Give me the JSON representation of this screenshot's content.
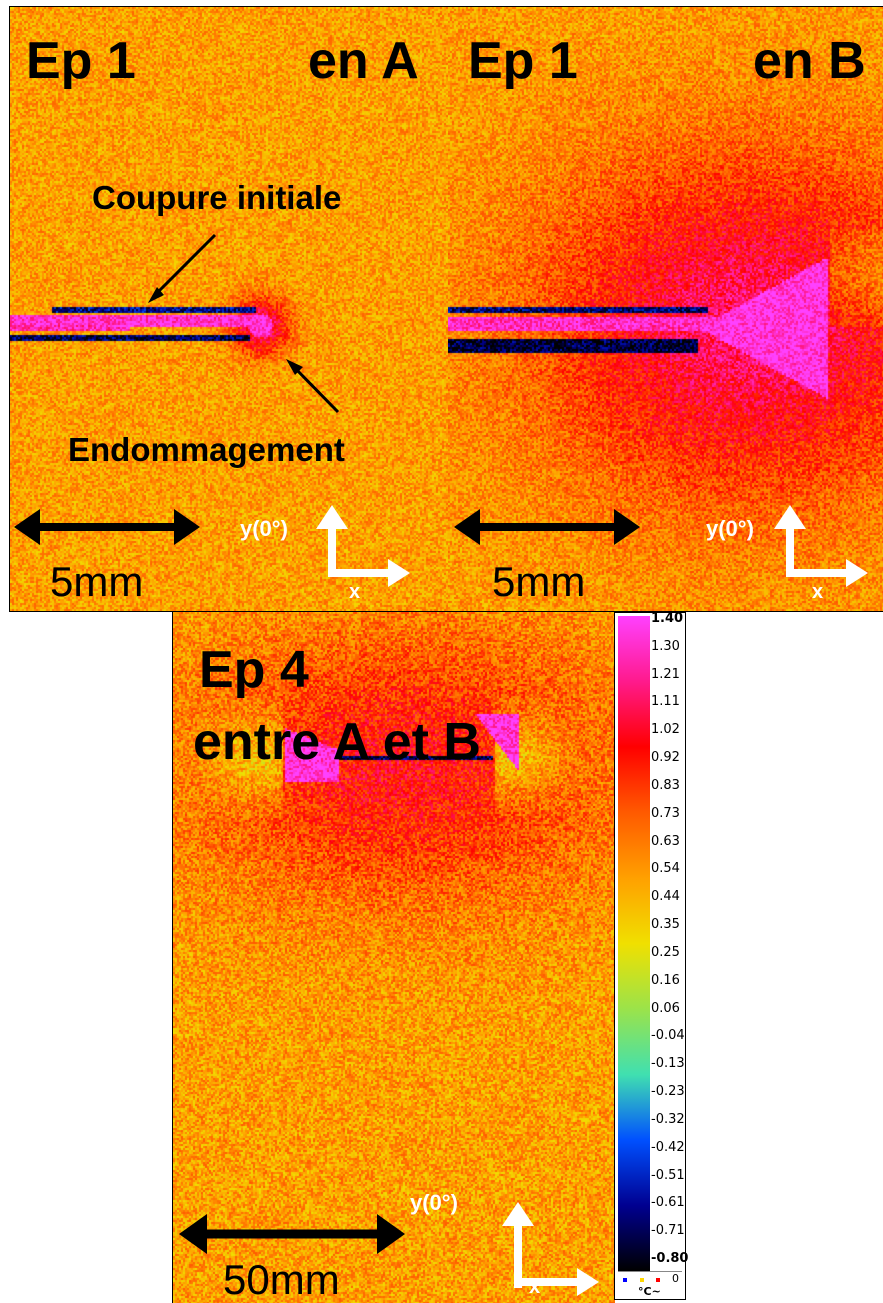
{
  "panels": {
    "a": {
      "title_left": "Ep 1",
      "title_right": "en A",
      "cut_label": "Coupure initiale",
      "damage_label": "Endommagement",
      "scale_label": "5mm",
      "axis_y": "y(0°)",
      "axis_x": "x"
    },
    "b": {
      "title_left": "Ep 1",
      "title_right": "en B",
      "scale_label": "5mm",
      "axis_y": "y(0°)",
      "axis_x": "x"
    },
    "c": {
      "title_line1": "Ep 4",
      "title_line2": "entre A et B",
      "scale_label": "50mm",
      "axis_y": "y(0°)",
      "axis_x": "x"
    }
  },
  "colorbar": {
    "ticks": [
      "1.40",
      "1.30",
      "1.21",
      "1.11",
      "1.02",
      "0.92",
      "0.83",
      "0.73",
      "0.63",
      "0.54",
      "0.44",
      "0.35",
      "0.25",
      "0.16",
      "0.06",
      "-0.04",
      "-0.13",
      "-0.23",
      "-0.32",
      "-0.42",
      "-0.51",
      "-0.61",
      "-0.71",
      "-0.80"
    ],
    "footer_value": "0",
    "unit": "°C~",
    "colors": [
      "#ff40ff",
      "#ff1a8c",
      "#ff0000",
      "#ff5a00",
      "#ffa000",
      "#f0e000",
      "#9be34a",
      "#40e0b0",
      "#0050ff",
      "#000090",
      "#000000"
    ]
  }
}
